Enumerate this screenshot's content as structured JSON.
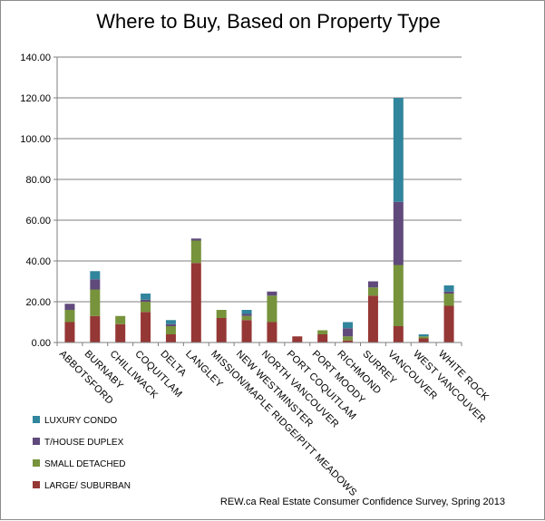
{
  "chart_data": {
    "type": "bar",
    "stacked": true,
    "title": "Where to Buy, Based on Property Type",
    "source": "REW.ca Real Estate Consumer Confidence Survey, Spring 2013",
    "xlabel": "",
    "ylabel": "",
    "ylim": [
      0,
      140
    ],
    "yticks": [
      "0.00",
      "20.00",
      "40.00",
      "60.00",
      "80.00",
      "100.00",
      "120.00",
      "140.00"
    ],
    "grid": true,
    "legend_position": "bottom-left",
    "categories": [
      "ABBOTSFORD",
      "BURNABY",
      "CHILLIWACK",
      "COQUITLAM",
      "DELTA",
      "LANGLEY",
      "MISSION/MAPLE RIDGE/PITT MEADOWS",
      "NEW WESTMINSTER",
      "NORTH VANCOUVER",
      "PORT COQUITLAM",
      "PORT MOODY",
      "RICHMOND",
      "SURREY",
      "VANCOUVER",
      "WEST VANCOUVER",
      "WHITE ROCK"
    ],
    "series": [
      {
        "name": "LARGE/ SUBURBAN",
        "color": "#953735",
        "values": [
          10,
          13,
          9,
          15,
          4,
          39,
          12,
          11,
          10,
          3,
          4,
          1,
          23,
          8,
          2,
          18
        ]
      },
      {
        "name": "SMALL DETACHED",
        "color": "#77933c",
        "values": [
          6,
          13,
          4,
          5,
          4,
          11,
          4,
          2,
          13,
          0,
          2,
          2,
          4,
          30,
          1,
          6
        ]
      },
      {
        "name": "T/HOUSE DUPLEX",
        "color": "#604a7b",
        "values": [
          3,
          5,
          0,
          1,
          1,
          1,
          0,
          1,
          2,
          0,
          0,
          4,
          3,
          31,
          0,
          1
        ]
      },
      {
        "name": "LUXURY CONDO",
        "color": "#31859c",
        "values": [
          0,
          4,
          0,
          3,
          2,
          0,
          0,
          2,
          0,
          0,
          0,
          3,
          0,
          51,
          1,
          3
        ]
      }
    ],
    "legend_order": [
      "LUXURY CONDO",
      "T/HOUSE DUPLEX",
      "SMALL DETACHED",
      "LARGE/ SUBURBAN"
    ],
    "colors": {
      "grid": "#7f7f7f",
      "axis": "#7f7f7f"
    }
  }
}
